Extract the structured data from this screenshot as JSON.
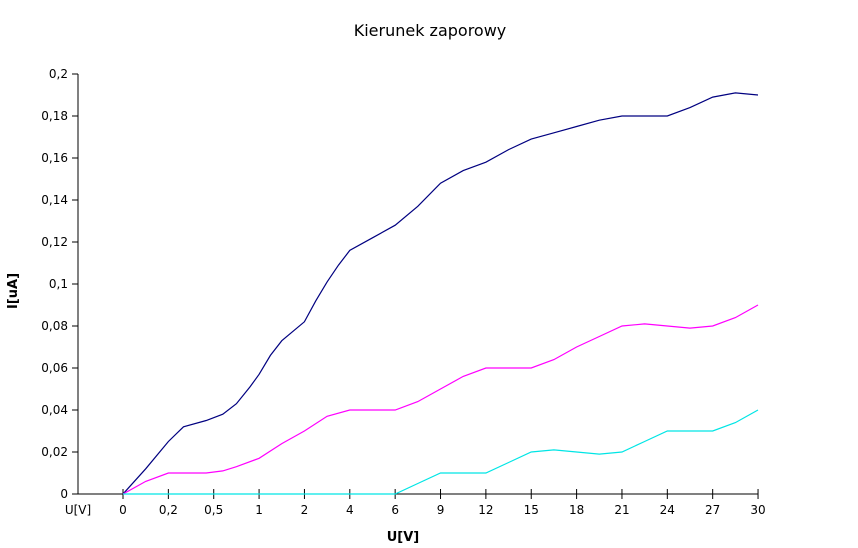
{
  "chart_data": {
    "type": "line",
    "title": "Kierunek zaporowy",
    "xlabel": "U[V]",
    "ylabel": "I[uA]",
    "x_start_label": "U[V]",
    "categories": [
      "0",
      "0,2",
      "0,5",
      "1",
      "2",
      "4",
      "6",
      "9",
      "12",
      "15",
      "18",
      "21",
      "24",
      "27",
      "30"
    ],
    "yticks": [
      "0",
      "0,02",
      "0,04",
      "0,06",
      "0,08",
      "0,1",
      "0,12",
      "0,14",
      "0,16",
      "0,18",
      "0,2"
    ],
    "ylim": [
      0,
      0.2
    ],
    "grid": false,
    "colors": {
      "series_navy": "#000080",
      "series_magenta": "#ff00ff",
      "series_cyan": "#00e5e5"
    },
    "series": [
      {
        "color": "#000080",
        "points": [
          [
            0,
            0
          ],
          [
            0.1,
            0.012
          ],
          [
            0.2,
            0.025
          ],
          [
            0.3,
            0.032
          ],
          [
            0.45,
            0.035
          ],
          [
            0.6,
            0.038
          ],
          [
            0.75,
            0.043
          ],
          [
            0.9,
            0.051
          ],
          [
            1,
            0.057
          ],
          [
            1.25,
            0.066
          ],
          [
            1.5,
            0.073
          ],
          [
            2,
            0.082
          ],
          [
            2.5,
            0.092
          ],
          [
            3,
            0.101
          ],
          [
            3.5,
            0.109
          ],
          [
            4,
            0.116
          ],
          [
            5,
            0.122
          ],
          [
            6,
            0.128
          ],
          [
            7.5,
            0.137
          ],
          [
            9,
            0.148
          ],
          [
            10.5,
            0.154
          ],
          [
            12,
            0.158
          ],
          [
            13.5,
            0.164
          ],
          [
            15,
            0.169
          ],
          [
            16.5,
            0.172
          ],
          [
            18,
            0.175
          ],
          [
            19.5,
            0.178
          ],
          [
            21,
            0.18
          ],
          [
            22.5,
            0.18
          ],
          [
            24,
            0.18
          ],
          [
            25.5,
            0.184
          ],
          [
            27,
            0.189
          ],
          [
            28.5,
            0.191
          ],
          [
            30,
            0.19
          ]
        ]
      },
      {
        "color": "#ff00ff",
        "points": [
          [
            0,
            0
          ],
          [
            0.1,
            0.006
          ],
          [
            0.2,
            0.01
          ],
          [
            0.3,
            0.01
          ],
          [
            0.45,
            0.01
          ],
          [
            0.6,
            0.011
          ],
          [
            0.75,
            0.013
          ],
          [
            1,
            0.017
          ],
          [
            1.5,
            0.024
          ],
          [
            2,
            0.03
          ],
          [
            3,
            0.037
          ],
          [
            4,
            0.04
          ],
          [
            5,
            0.04
          ],
          [
            6,
            0.04
          ],
          [
            7.5,
            0.044
          ],
          [
            9,
            0.05
          ],
          [
            10.5,
            0.056
          ],
          [
            12,
            0.06
          ],
          [
            13.5,
            0.06
          ],
          [
            15,
            0.06
          ],
          [
            16.5,
            0.064
          ],
          [
            18,
            0.07
          ],
          [
            19.5,
            0.075
          ],
          [
            21,
            0.08
          ],
          [
            22.5,
            0.081
          ],
          [
            24,
            0.08
          ],
          [
            25.5,
            0.079
          ],
          [
            27,
            0.08
          ],
          [
            28.5,
            0.084
          ],
          [
            30,
            0.09
          ]
        ]
      },
      {
        "color": "#00e5e5",
        "points": [
          [
            0,
            0
          ],
          [
            0.5,
            0
          ],
          [
            1,
            0
          ],
          [
            2,
            0
          ],
          [
            4,
            0
          ],
          [
            6,
            0
          ],
          [
            7.5,
            0.005
          ],
          [
            9,
            0.01
          ],
          [
            10.5,
            0.01
          ],
          [
            12,
            0.01
          ],
          [
            13.5,
            0.015
          ],
          [
            15,
            0.02
          ],
          [
            16.5,
            0.021
          ],
          [
            18,
            0.02
          ],
          [
            19.5,
            0.019
          ],
          [
            21,
            0.02
          ],
          [
            22.5,
            0.025
          ],
          [
            24,
            0.03
          ],
          [
            25.5,
            0.03
          ],
          [
            27,
            0.03
          ],
          [
            28.5,
            0.034
          ],
          [
            30,
            0.04
          ]
        ]
      }
    ]
  }
}
